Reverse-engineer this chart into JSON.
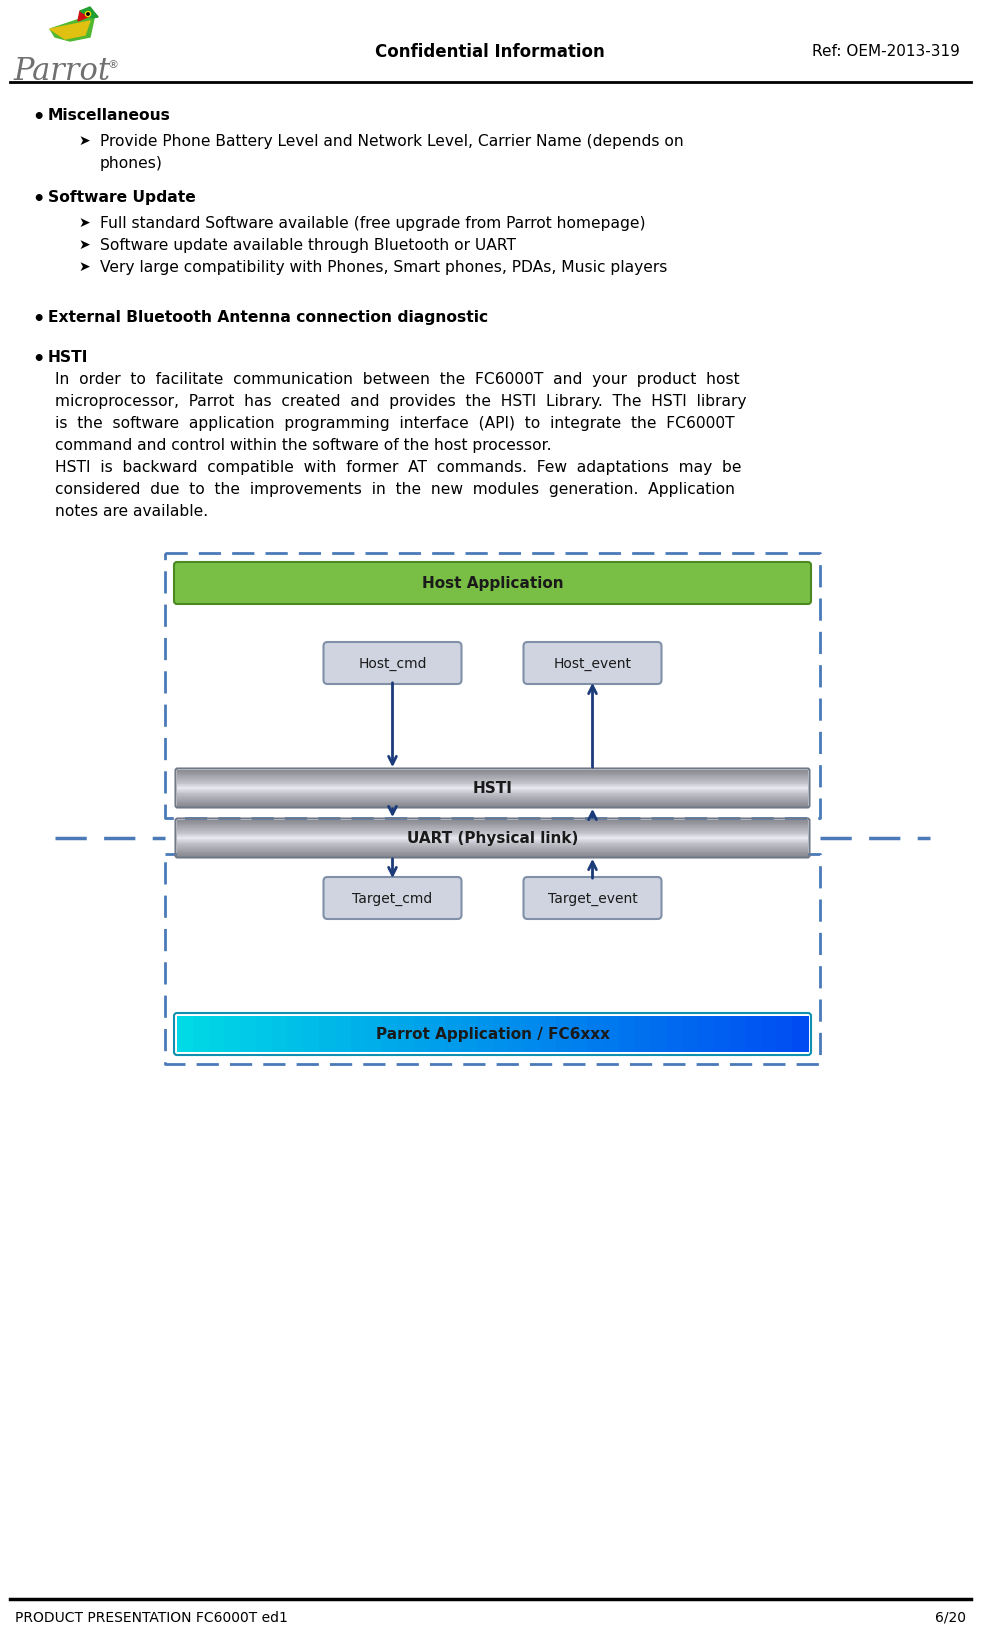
{
  "title": "Confidential Information",
  "ref": "Ref: OEM-2013-319",
  "footer_left": "PRODUCT PRESENTATION FC6000T ed1",
  "footer_right": "6/20",
  "background": "#ffffff",
  "bullet1_header": "Miscellaneous",
  "bullet1_sub1a": "Provide Phone Battery Level and Network Level, Carrier Name (depends on",
  "bullet1_sub1b": "phones)",
  "bullet2_header": "Software Update",
  "bullet2_sub1": "Full standard Software available (free upgrade from Parrot homepage)",
  "bullet2_sub2": "Software update available through Bluetooth or UART",
  "bullet2_sub3": "Very large compatibility with Phones, Smart phones, PDAs, Music players",
  "bullet3_header": "External Bluetooth Antenna connection diagnostic",
  "bullet4_header": "HSTI",
  "hsti_body": [
    "In  order  to  facilitate  communication  between  the  FC6000T  and  your  product  host",
    "microprocessor,  Parrot  has  created  and  provides  the  HSTI  Library.  The  HSTI  library",
    "is  the  software  application  programming  interface  (API)  to  integrate  the  FC6000T",
    "command and control within the software of the host processor.",
    "HSTI  is  backward  compatible  with  former  AT  commands.  Few  adaptations  may  be",
    "considered  due  to  the  improvements  in  the  new  modules  generation.  Application",
    "notes are available."
  ],
  "diagram": {
    "host_app_text": "Host Application",
    "host_app_fill": "#7abf45",
    "host_app_edge": "#4a8a20",
    "hsti_text": "HSTI",
    "uart_text": "UART (Physical link)",
    "silver_light": "#e8eaf0",
    "silver_mid": "#b8bcc8",
    "silver_dark": "#909098",
    "parrot_app_text": "Parrot Application / FC6xxx",
    "parrot_top_color": "#00d8f0",
    "parrot_bot_color": "#0070c0",
    "host_cmd_text": "Host_cmd",
    "host_event_text": "Host_event",
    "target_cmd_text": "Target_cmd",
    "target_event_text": "Target_event",
    "small_box_fill": "#d0d4e0",
    "small_box_edge": "#8090a8",
    "arrow_color": "#1a3a7a",
    "dashed_color": "#4a7ab8"
  }
}
